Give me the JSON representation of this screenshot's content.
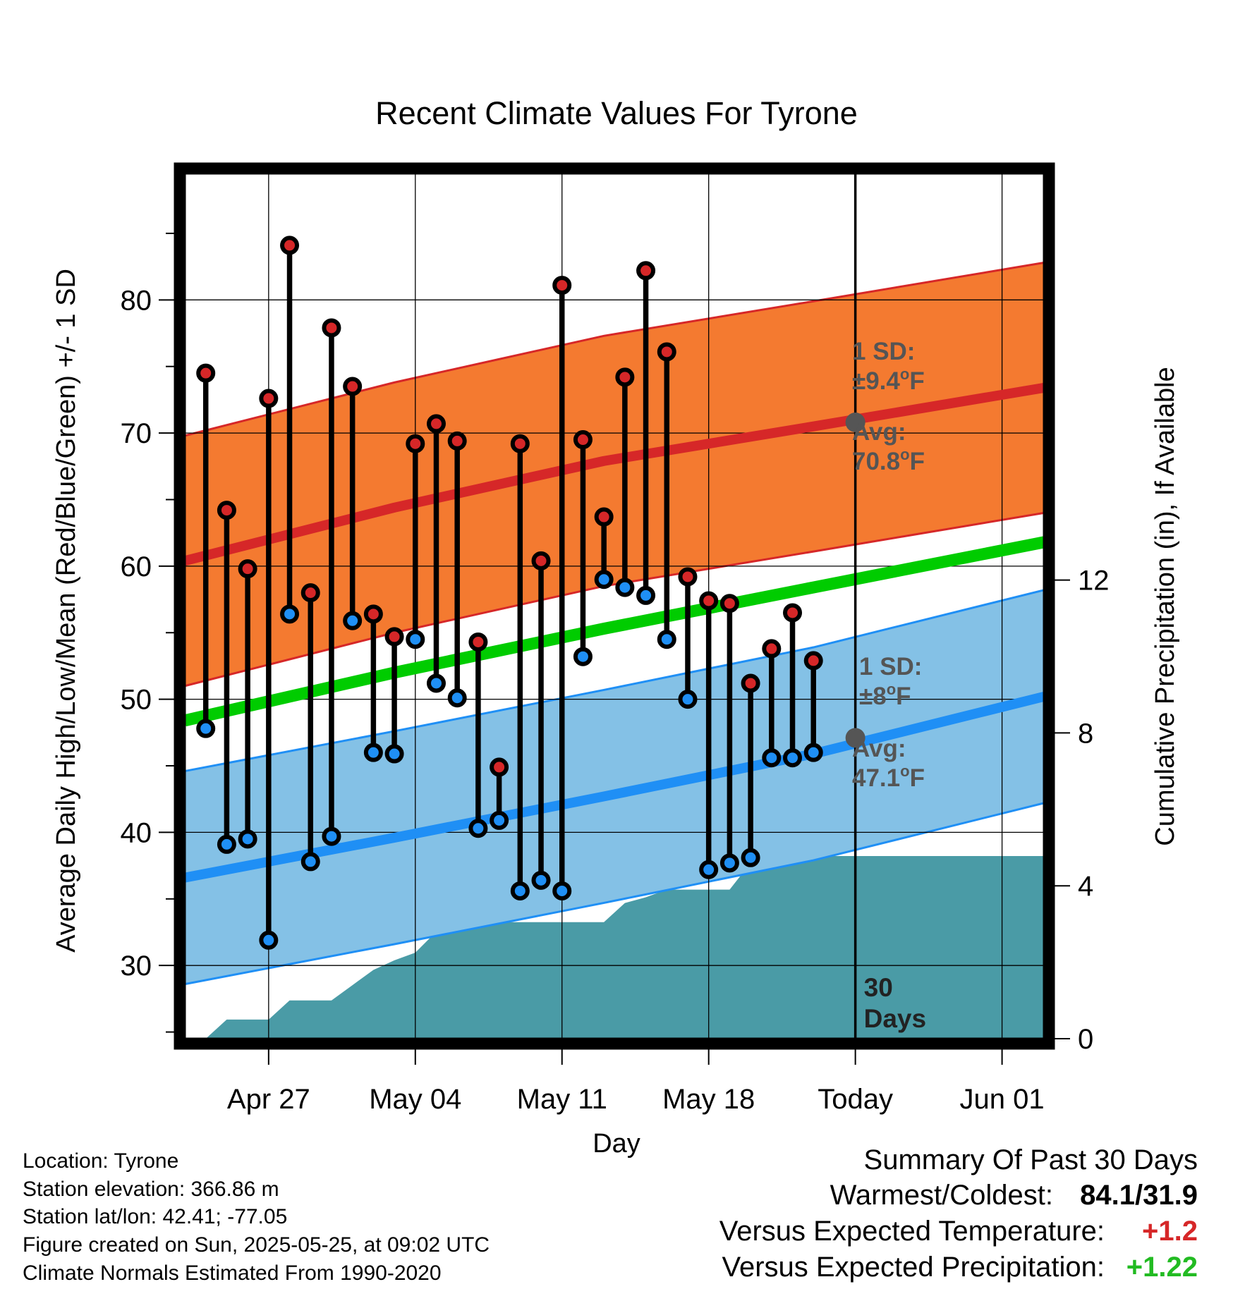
{
  "chart_data": {
    "type": "line",
    "title": "Recent Climate Values For Tyrone",
    "xlabel": "Day",
    "ylabel": "Average Daily High/Low/Mean (Red/Blue/Green) +/- 1 SD",
    "y2label": "Cumulative Precipitation (in), If Available",
    "ylim": [
      24.5,
      89.5
    ],
    "y2lim": [
      0,
      22.64
    ],
    "y_ticks": [
      30,
      40,
      50,
      60,
      70,
      80
    ],
    "y_tick_labels": [
      "30",
      "40",
      "50",
      "60",
      "70",
      "80"
    ],
    "y2_ticks": [
      0,
      4,
      8,
      12
    ],
    "y2_tick_labels": [
      "0",
      "4",
      "8",
      "12"
    ],
    "x_range": [
      "2025-04-23",
      "2025-06-03"
    ],
    "x_ticks": [
      {
        "date": "2025-04-27",
        "label": "Apr 27"
      },
      {
        "date": "2025-05-04",
        "label": "May 04"
      },
      {
        "date": "2025-05-11",
        "label": "May 11"
      },
      {
        "date": "2025-05-18",
        "label": "May 18"
      },
      {
        "date": "2025-05-25",
        "label": "Today"
      },
      {
        "date": "2025-06-01",
        "label": "Jun 01"
      }
    ],
    "grid": true,
    "today": "2025-05-25",
    "days_label": [
      "30",
      "Days"
    ],
    "daily": {
      "dates": [
        "2025-04-24",
        "2025-04-25",
        "2025-04-26",
        "2025-04-27",
        "2025-04-28",
        "2025-04-29",
        "2025-04-30",
        "2025-05-01",
        "2025-05-02",
        "2025-05-03",
        "2025-05-04",
        "2025-05-05",
        "2025-05-06",
        "2025-05-07",
        "2025-05-08",
        "2025-05-09",
        "2025-05-10",
        "2025-05-11",
        "2025-05-12",
        "2025-05-13",
        "2025-05-14",
        "2025-05-15",
        "2025-05-16",
        "2025-05-17",
        "2025-05-18",
        "2025-05-19",
        "2025-05-20",
        "2025-05-21",
        "2025-05-22",
        "2025-05-23",
        "2025-05-24"
      ],
      "high": [
        74.5,
        64.2,
        59.8,
        72.6,
        84.1,
        58.0,
        77.9,
        73.5,
        56.4,
        54.7,
        69.2,
        70.7,
        69.4,
        54.3,
        44.9,
        69.2,
        60.4,
        81.1,
        69.5,
        63.7,
        74.2,
        82.2,
        76.1,
        59.2,
        57.4,
        57.2,
        51.2,
        53.8,
        56.5,
        52.9,
        null
      ],
      "low": [
        47.8,
        39.1,
        39.5,
        31.9,
        56.4,
        37.8,
        39.7,
        55.9,
        46.0,
        45.9,
        54.5,
        51.2,
        50.1,
        40.3,
        40.9,
        35.6,
        36.4,
        35.6,
        53.2,
        59.0,
        58.4,
        57.8,
        54.5,
        50.0,
        37.2,
        37.7,
        38.1,
        45.6,
        45.6,
        46.0,
        null
      ]
    },
    "normals": {
      "dates": [
        "2025-04-23",
        "2025-05-03",
        "2025-05-13",
        "2025-05-23",
        "2025-06-03"
      ],
      "high_avg": [
        60.4,
        64.4,
        67.9,
        70.5,
        73.4
      ],
      "high_sd": 9.4,
      "low_avg": [
        36.6,
        39.6,
        42.7,
        45.9,
        50.2
      ],
      "low_sd": 8.0,
      "mean": [
        48.4,
        52.0,
        55.3,
        58.4,
        61.8
      ]
    },
    "precip_cumulative": {
      "dates": [
        "2025-04-24",
        "2025-04-25",
        "2025-04-26",
        "2025-04-27",
        "2025-04-28",
        "2025-04-29",
        "2025-04-30",
        "2025-05-01",
        "2025-05-02",
        "2025-05-03",
        "2025-05-04",
        "2025-05-05",
        "2025-05-06",
        "2025-05-07",
        "2025-05-08",
        "2025-05-09",
        "2025-05-10",
        "2025-05-11",
        "2025-05-12",
        "2025-05-13",
        "2025-05-14",
        "2025-05-15",
        "2025-05-16",
        "2025-05-17",
        "2025-05-18",
        "2025-05-19",
        "2025-05-20",
        "2025-05-21",
        "2025-05-22",
        "2025-05-23",
        "2025-05-24",
        "2025-05-25",
        "2025-06-03"
      ],
      "values": [
        0.0,
        0.5,
        0.5,
        0.5,
        1.0,
        1.0,
        1.0,
        1.4,
        1.8,
        2.05,
        2.25,
        2.8,
        2.95,
        2.95,
        3.05,
        3.05,
        3.05,
        3.05,
        3.05,
        3.05,
        3.55,
        3.7,
        3.9,
        3.9,
        3.9,
        3.9,
        4.6,
        4.72,
        4.78,
        4.78,
        4.78,
        4.78,
        4.78
      ]
    },
    "annotations": {
      "high_sd": [
        "1 SD:",
        "±9.4°F"
      ],
      "high_avg": [
        "Avg:",
        "70.8°F"
      ],
      "low_sd": [
        "1 SD:",
        "±8°F"
      ],
      "low_avg": [
        "Avg:",
        "47.1°F"
      ],
      "today_high_avg": 70.8,
      "today_low_avg": 47.1
    },
    "colors": {
      "high_band": "#f47a30",
      "high_line": "#d62728",
      "low_band": "#84c1e6",
      "low_line": "#1f8ff5",
      "mean_line": "#00cc00",
      "precip": "#4a9ba6",
      "high_dot": "#d62728",
      "low_dot": "#1f8ff5",
      "today_dot": "#555555"
    }
  },
  "info": {
    "location": "Location: Tyrone",
    "elevation": "Station elevation: 366.86 m",
    "latlon": "Station lat/lon: 42.41; -77.05",
    "created": "Figure created on Sun, 2025-05-25, at 09:02 UTC",
    "normals": "Climate Normals Estimated From 1990-2020"
  },
  "summary": {
    "heading": "Summary Of Past 30 Days",
    "warm_cold_label": "Warmest/Coldest:",
    "warm_cold_value": "84.1/31.9",
    "temp_label": "Versus Expected Temperature:",
    "temp_value": "+1.2",
    "temp_color": "#d62728",
    "precip_label": "Versus Expected Precipitation:",
    "precip_value": "+1.22",
    "precip_color": "#22bb22"
  }
}
